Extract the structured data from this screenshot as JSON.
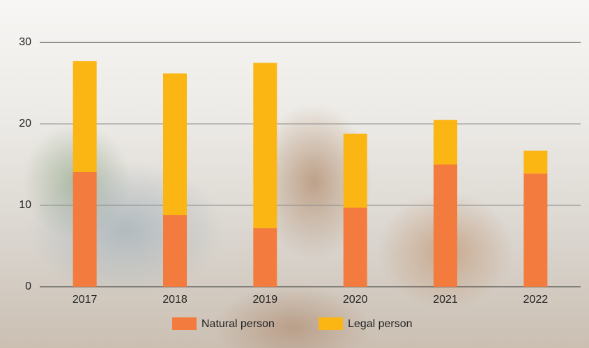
{
  "chart_data": {
    "type": "stacked_bar",
    "categories": [
      "2017",
      "2018",
      "2019",
      "2020",
      "2021",
      "2022"
    ],
    "series": [
      {
        "name": "Natural person",
        "color": "#f47b3e",
        "values": [
          14.1,
          8.8,
          7.2,
          9.7,
          15.0,
          13.9
        ]
      },
      {
        "name": "Legal person",
        "color": "#fbb614",
        "values": [
          13.6,
          17.4,
          20.3,
          9.1,
          5.5,
          2.8
        ]
      }
    ],
    "ylim": [
      0,
      30
    ],
    "yticks": [
      0,
      10,
      20,
      30
    ],
    "grid": true,
    "legend": "bottom"
  }
}
